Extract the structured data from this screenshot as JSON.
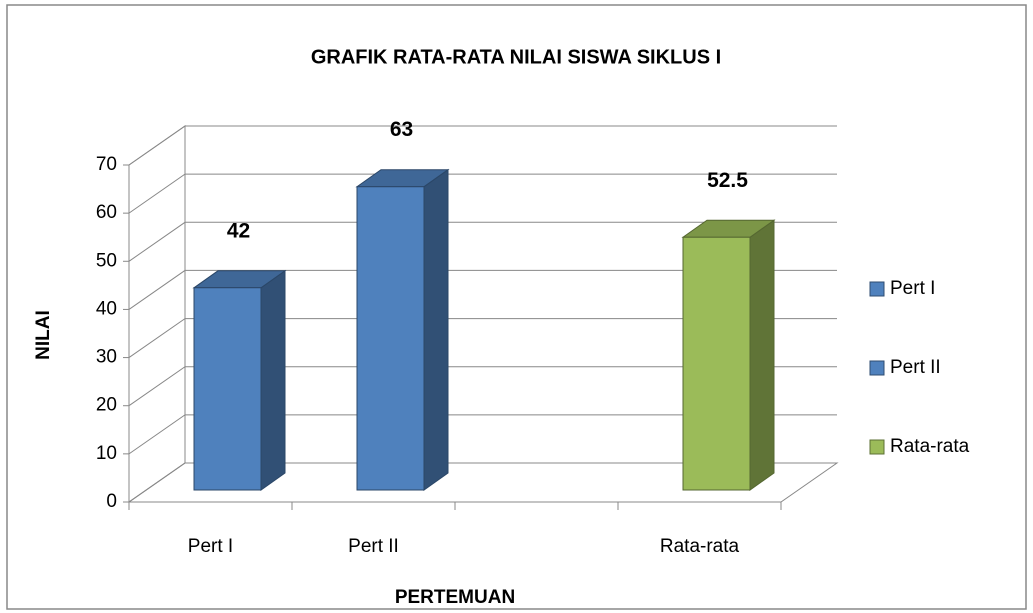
{
  "chart_data": {
    "type": "bar3d",
    "title": "GRAFIK RATA-RATA NILAI SISWA  SIKLUS I",
    "x_label": "PERTEMUAN",
    "y_label": "NILAI",
    "categories": [
      "Pert I",
      "Pert II",
      null,
      "Rata-rata"
    ],
    "series": [
      {
        "name": "Pert I",
        "color": "#4f81bd",
        "values": [
          42,
          null,
          null,
          null
        ]
      },
      {
        "name": "Pert II",
        "color": "#4f81bd",
        "values": [
          null,
          63,
          null,
          null
        ]
      },
      {
        "name": "Rata-rata",
        "color": "#9bbb59",
        "values": [
          null,
          null,
          null,
          52.5
        ]
      }
    ],
    "ylim": [
      0,
      70
    ],
    "yticks": [
      0,
      10,
      20,
      30,
      40,
      50,
      60,
      70
    ],
    "grid": true,
    "legend": "right"
  }
}
